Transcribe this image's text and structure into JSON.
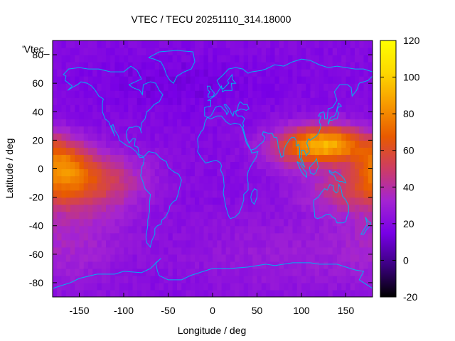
{
  "chart_data": {
    "type": "heatmap",
    "title": "VTEC / TECU 20251110_314.18000",
    "xlabel": "Longitude / deg",
    "ylabel": "Latitude / deg",
    "key_label": "'Vtec_",
    "xlim": [
      -180,
      180
    ],
    "ylim": [
      -90,
      90
    ],
    "x_ticks": [
      -150,
      -100,
      -50,
      0,
      50,
      100,
      150
    ],
    "y_ticks": [
      -80,
      -60,
      -40,
      -20,
      0,
      20,
      40,
      60,
      80
    ],
    "colorbar": {
      "range": [
        -20,
        120
      ],
      "ticks": [
        -20,
        0,
        20,
        40,
        60,
        80,
        100,
        120
      ],
      "palette": [
        "#000000",
        "#3c0082",
        "#7800e6",
        "#a424d2",
        "#cd3c64",
        "#e85a00",
        "#f79900",
        "#fdd800",
        "#ffff00"
      ]
    },
    "grid": false,
    "field_description": "Global vertical total electron content map; maxima near 0-20N over the western/central Pacific and Asia (~100-125 TECU) and a second crest near 5N over the eastern Pacific (~60-65 TECU); minima over the north polar region and Africa/Atlantic (~15-20 TECU).",
    "field_model": {
      "background": 20,
      "blobs": [
        {
          "lon": 135,
          "lat": 18,
          "amp": 52,
          "slon": 28,
          "slat": 9
        },
        {
          "lon": 100,
          "lat": 15,
          "amp": 35,
          "slon": 30,
          "slat": 10
        },
        {
          "lon": 155,
          "lat": -15,
          "amp": 22,
          "slon": 40,
          "slat": 10
        },
        {
          "lon": -170,
          "lat": 5,
          "amp": 40,
          "slon": 22,
          "slat": 12
        },
        {
          "lon": -135,
          "lat": -8,
          "amp": 32,
          "slon": 40,
          "slat": 14
        },
        {
          "lon": -160,
          "lat": -45,
          "amp": 12,
          "slon": 45,
          "slat": 25
        },
        {
          "lon": 80,
          "lat": -60,
          "amp": 8,
          "slon": 80,
          "slat": 20
        },
        {
          "lon": -40,
          "lat": 60,
          "amp": -6,
          "slon": 80,
          "slat": 15
        }
      ]
    },
    "overlay": "coastlines",
    "coastline_color": "#00b0f0"
  }
}
